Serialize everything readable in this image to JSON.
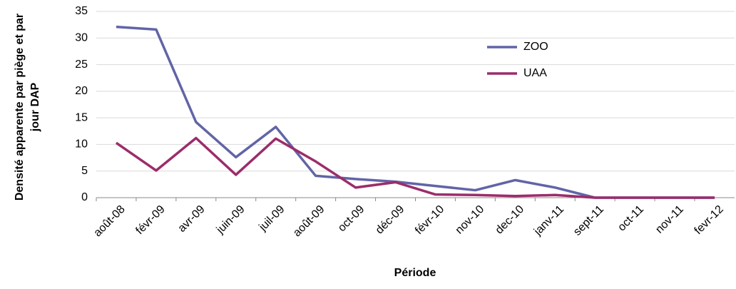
{
  "chart_data": {
    "type": "line",
    "x_label": "Période",
    "y_label": [
      "Densité apparente par piège et par",
      "jour DAP"
    ],
    "categories": [
      "août-08",
      "févr-09",
      "avr-09",
      "juin-09",
      "juil-09",
      "août-09",
      "oct-09",
      "déc-09",
      "févr-10",
      "nov-10",
      "dec-10",
      "janv-11",
      "sept-11",
      "oct-11",
      "nov-11",
      "fevr-12"
    ],
    "series": [
      {
        "name": "ZOO",
        "color": "#6264a7",
        "values": [
          32.1,
          31.6,
          14.2,
          7.6,
          13.3,
          4.1,
          3.5,
          3.0,
          2.2,
          1.4,
          3.3,
          1.9,
          0,
          0,
          0,
          0
        ]
      },
      {
        "name": "UAA",
        "color": "#9b2d6a",
        "values": [
          10.3,
          5.1,
          11.2,
          4.3,
          11.1,
          6.8,
          1.9,
          2.9,
          0.6,
          0.5,
          0.3,
          0.5,
          0,
          0,
          0,
          0
        ]
      }
    ],
    "ylim": [
      0,
      35
    ],
    "yticks": [
      0,
      5,
      10,
      15,
      20,
      25,
      30,
      35
    ],
    "grid": true
  }
}
